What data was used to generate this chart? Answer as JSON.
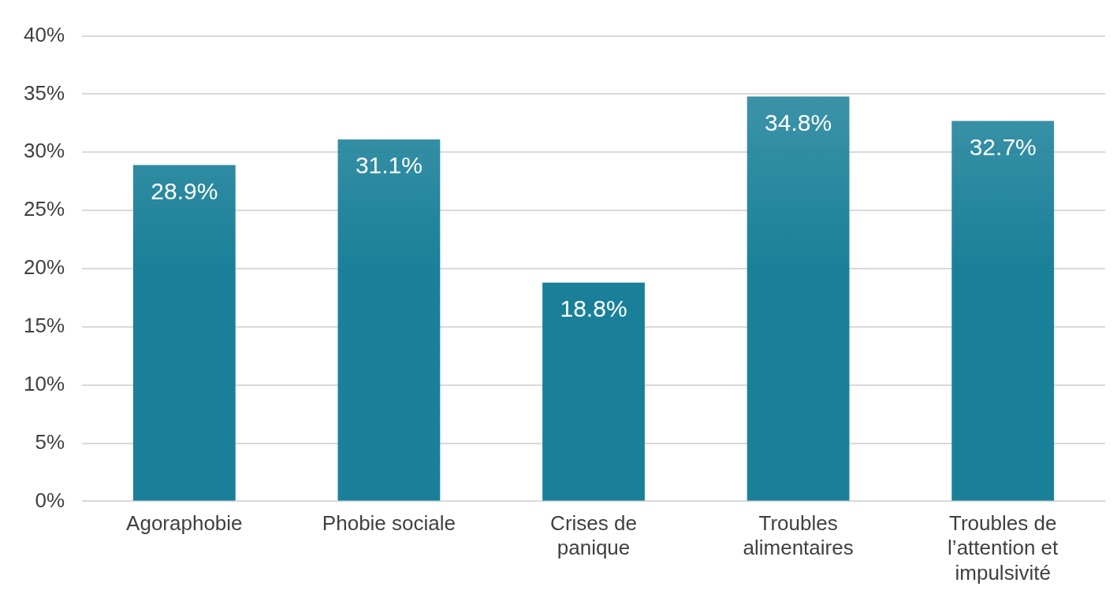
{
  "chart_data": {
    "type": "bar",
    "categories": [
      "Agoraphobie",
      "Phobie sociale",
      "Crises de panique",
      "Troubles alimentaires",
      "Troubles de l’attention et impulsivité"
    ],
    "values": [
      28.9,
      31.1,
      18.8,
      34.8,
      32.7
    ],
    "value_labels": [
      "28.9%",
      "31.1%",
      "18.8%",
      "34.8%",
      "32.7%"
    ],
    "color": "#1a8099",
    "ylim": [
      0,
      40
    ],
    "yticks": [
      {
        "value": 0,
        "label": "0%"
      },
      {
        "value": 5,
        "label": "5%"
      },
      {
        "value": 10,
        "label": "10%"
      },
      {
        "value": 15,
        "label": "15%"
      },
      {
        "value": 20,
        "label": "20%"
      },
      {
        "value": 25,
        "label": "25%"
      },
      {
        "value": 30,
        "label": "30%"
      },
      {
        "value": 35,
        "label": "35%"
      },
      {
        "value": 40,
        "label": "40%"
      }
    ],
    "grid": "y"
  }
}
